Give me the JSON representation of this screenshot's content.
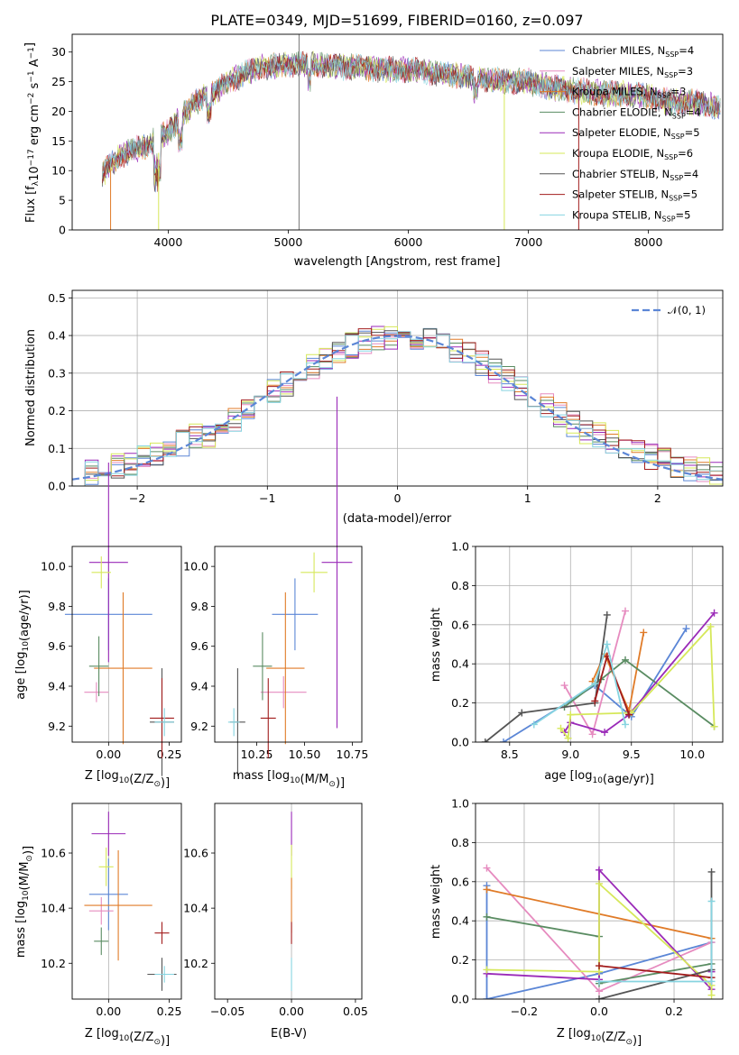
{
  "figure_title": "PLATE=0349, MJD=51699, FIBERID=0160, z=0.097",
  "colors": {
    "chabrier_miles": "#5b86d6",
    "salpeter_miles": "#e68bbf",
    "kroupa_miles": "#e07b28",
    "chabrier_elodie": "#5a8c62",
    "salpeter_elodie": "#9a2ab8",
    "kroupa_elodie": "#d6e85a",
    "chabrier_stelib": "#555555",
    "salpeter_stelib": "#a21d1d",
    "kroupa_stelib": "#86d4e0"
  },
  "chart_data": [
    {
      "type": "line",
      "xlabel": "wavelength [Angstrom, rest frame]",
      "ylabel": "Flux [f",
      "ylabel_sub": "λ",
      "ylabel_mid": "10",
      "ylabel_exp1": "−17",
      "ylabel_tail1": " erg cm",
      "ylabel_exp2": "−2",
      "ylabel_tail2": " s",
      "ylabel_exp3": "−1",
      "ylabel_tail3": " A",
      "ylabel_exp4": "−1",
      "ylabel_end": "]",
      "xlim": [
        3200,
        8620
      ],
      "ylim": [
        0,
        33
      ],
      "xticks": [
        "4000",
        "5000",
        "6000",
        "7000",
        "8000"
      ],
      "yticks": [
        "0",
        "5",
        "10",
        "15",
        "20",
        "25",
        "30"
      ],
      "continuum_x": [
        3450,
        3600,
        3700,
        3800,
        3900,
        4000,
        4100,
        4200,
        4300,
        4400,
        4500,
        4600,
        4700,
        4800,
        4900,
        5000,
        5200,
        5400,
        5600,
        5800,
        6000,
        6200,
        6400,
        6600,
        6800,
        7000,
        7200,
        7400,
        7600,
        7800,
        8000,
        8200,
        8400,
        8600
      ],
      "continuum_y": [
        9.5,
        12.5,
        13.5,
        14,
        15.5,
        16.5,
        19,
        21,
        22.5,
        23.5,
        25,
        26,
        27,
        27.5,
        27.5,
        28,
        28,
        27.5,
        27.5,
        27,
        27,
        26.5,
        26,
        25.5,
        25,
        25,
        24,
        23.5,
        23,
        23,
        22.5,
        21.5,
        21.5,
        20.5
      ],
      "legend_placement": "top-right",
      "legend": [
        {
          "name": "Chabrier MILES, N",
          "sub": "SSP",
          "tail": "=4",
          "color": "#5b86d6"
        },
        {
          "name": "Salpeter MILES, N",
          "sub": "SSP",
          "tail": "=3",
          "color": "#e68bbf"
        },
        {
          "name": "Kroupa MILES, N",
          "sub": "SSP",
          "tail": "=3",
          "color": "#e07b28"
        },
        {
          "name": "Chabrier ELODIE, N",
          "sub": "SSP",
          "tail": "=4",
          "color": "#5a8c62"
        },
        {
          "name": "Salpeter ELODIE, N",
          "sub": "SSP",
          "tail": "=5",
          "color": "#9a2ab8"
        },
        {
          "name": "Kroupa ELODIE, N",
          "sub": "SSP",
          "tail": "=6",
          "color": "#d6e85a"
        },
        {
          "name": "Chabrier STELIB, N",
          "sub": "SSP",
          "tail": "=4",
          "color": "#555555"
        },
        {
          "name": "Salpeter STELIB, N",
          "sub": "SSP",
          "tail": "=5",
          "color": "#a21d1d"
        },
        {
          "name": "Kroupa STELIB, N",
          "sub": "SSP",
          "tail": "=5",
          "color": "#86d4e0"
        }
      ],
      "vertical_spikes_x": [
        5090,
        6800,
        7420,
        3520,
        3920
      ]
    },
    {
      "type": "histogram",
      "xlabel": "(data-model)/error",
      "ylabel": "Normed distribution",
      "xlim": [
        -2.5,
        2.5
      ],
      "ylim": [
        0,
        0.52
      ],
      "xticks": [
        "−2",
        "−1",
        "0",
        "1",
        "2"
      ],
      "yticks": [
        "0.0",
        "0.1",
        "0.2",
        "0.3",
        "0.4",
        "0.5"
      ],
      "grid": true,
      "legend_placement": "top-right",
      "normal_label": "𝒩(0, 1)",
      "normal_color": "#5b86d6",
      "bin_width": 0.1
    },
    {
      "type": "errorbar",
      "xlabel": "Z [log",
      "xlabel_sub": "10",
      "xlabel_tail": "(Z/Z",
      "xlabel_sun": "⊙",
      "xlabel_end": ")]",
      "ylabel": "age  [log",
      "ylabel_sub": "10",
      "ylabel_tail": "(age/yr)]",
      "xlim": [
        -0.15,
        0.3
      ],
      "ylim": [
        9.12,
        10.1
      ],
      "xticks": [
        "0.00",
        "0.25"
      ],
      "yticks": [
        "9.2",
        "9.4",
        "9.6",
        "9.8",
        "10.0"
      ],
      "points": [
        {
          "x": 0.0,
          "y": 9.76,
          "xerr": 0.18,
          "yerr": 0.18,
          "c": "chabrier_miles"
        },
        {
          "x": -0.05,
          "y": 9.37,
          "xerr": 0.05,
          "yerr": 0.05,
          "c": "salpeter_miles"
        },
        {
          "x": 0.06,
          "y": 9.49,
          "xerr": 0.12,
          "yerr": 0.38,
          "c": "kroupa_miles"
        },
        {
          "x": -0.04,
          "y": 9.5,
          "xerr": 0.04,
          "yerr": 0.15,
          "c": "chabrier_elodie"
        },
        {
          "x": 0.0,
          "y": 10.02,
          "xerr": 0.08,
          "yerr": 0.5,
          "c": "salpeter_elodie"
        },
        {
          "x": -0.03,
          "y": 9.97,
          "xerr": 0.04,
          "yerr": 0.08,
          "c": "kroupa_elodie"
        },
        {
          "x": 0.22,
          "y": 9.22,
          "xerr": 0.05,
          "yerr": 0.27,
          "c": "chabrier_stelib"
        },
        {
          "x": 0.22,
          "y": 9.24,
          "xerr": 0.05,
          "yerr": 0.2,
          "c": "salpeter_stelib"
        },
        {
          "x": 0.23,
          "y": 9.22,
          "xerr": 0.04,
          "yerr": 0.07,
          "c": "kroupa_stelib"
        }
      ]
    },
    {
      "type": "errorbar",
      "xlabel": "mass [log",
      "xlabel_sub": "10",
      "xlabel_tail": "(M/M",
      "xlabel_sun": "⊙",
      "xlabel_end": ")]",
      "xlim": [
        10.03,
        10.8
      ],
      "ylim": [
        9.12,
        10.1
      ],
      "xticks": [
        "10.25",
        "10.50",
        "10.75"
      ],
      "yticks": [
        "9.2",
        "9.4",
        "9.6",
        "9.8",
        "10.0"
      ],
      "points": [
        {
          "x": 10.45,
          "y": 9.76,
          "xerr": 0.12,
          "yerr": 0.18,
          "c": "chabrier_miles"
        },
        {
          "x": 10.39,
          "y": 9.37,
          "xerr": 0.12,
          "yerr": 0.08,
          "c": "salpeter_miles"
        },
        {
          "x": 10.4,
          "y": 9.49,
          "xerr": 0.1,
          "yerr": 0.38,
          "c": "kroupa_miles"
        },
        {
          "x": 10.28,
          "y": 9.5,
          "xerr": 0.05,
          "yerr": 0.17,
          "c": "chabrier_elodie"
        },
        {
          "x": 10.67,
          "y": 10.02,
          "xerr": 0.08,
          "yerr": 0.83,
          "c": "salpeter_elodie"
        },
        {
          "x": 10.55,
          "y": 9.97,
          "xerr": 0.07,
          "yerr": 0.1,
          "c": "kroupa_elodie"
        },
        {
          "x": 10.15,
          "y": 9.22,
          "xerr": 0.04,
          "yerr": 0.27,
          "c": "chabrier_stelib"
        },
        {
          "x": 10.31,
          "y": 9.24,
          "xerr": 0.04,
          "yerr": 0.2,
          "c": "salpeter_stelib"
        },
        {
          "x": 10.13,
          "y": 9.22,
          "xerr": 0.03,
          "yerr": 0.07,
          "c": "kroupa_stelib"
        }
      ]
    },
    {
      "type": "line",
      "xlabel": "age  [log",
      "xlabel_sub": "10",
      "xlabel_tail": "(age/yr)]",
      "ylabel": "mass weight",
      "xlim": [
        8.22,
        10.25
      ],
      "ylim": [
        0,
        1
      ],
      "xticks": [
        "8.5",
        "9.0",
        "9.5",
        "10.0"
      ],
      "yticks": [
        "0.0",
        "0.2",
        "0.4",
        "0.6",
        "0.8",
        "1.0"
      ],
      "grid": true,
      "series": [
        {
          "c": "chabrier_miles",
          "x": [
            8.45,
            9.2,
            9.5,
            9.95
          ],
          "y": [
            0.0,
            0.29,
            0.13,
            0.58
          ]
        },
        {
          "c": "salpeter_miles",
          "x": [
            8.95,
            9.18,
            9.45
          ],
          "y": [
            0.29,
            0.04,
            0.67
          ]
        },
        {
          "c": "kroupa_miles",
          "x": [
            9.18,
            9.28,
            9.48,
            9.6
          ],
          "y": [
            0.31,
            0.45,
            0.16,
            0.56
          ]
        },
        {
          "c": "chabrier_elodie",
          "x": [
            8.95,
            9.25,
            9.45,
            10.18
          ],
          "y": [
            0.18,
            0.32,
            0.42,
            0.08
          ]
        },
        {
          "c": "salpeter_elodie",
          "x": [
            8.95,
            9.0,
            9.28,
            9.48,
            10.18
          ],
          "y": [
            0.05,
            0.1,
            0.05,
            0.14,
            0.66
          ]
        },
        {
          "c": "kroupa_elodie",
          "x": [
            8.92,
            8.98,
            9.0,
            9.5,
            10.15,
            10.18
          ],
          "y": [
            0.07,
            0.02,
            0.14,
            0.15,
            0.59,
            0.08
          ]
        },
        {
          "c": "chabrier_stelib",
          "x": [
            8.3,
            8.6,
            9.2,
            9.3
          ],
          "y": [
            0.0,
            0.15,
            0.2,
            0.65
          ]
        },
        {
          "c": "salpeter_stelib",
          "x": [
            9.2,
            9.3,
            9.48
          ],
          "y": [
            0.21,
            0.44,
            0.14
          ]
        },
        {
          "c": "kroupa_stelib",
          "x": [
            8.7,
            9.2,
            9.3,
            9.45
          ],
          "y": [
            0.09,
            0.3,
            0.5,
            0.09
          ]
        }
      ]
    },
    {
      "type": "errorbar",
      "xlabel": "Z [log",
      "xlabel_sub": "10",
      "xlabel_tail": "(Z/Z",
      "xlabel_sun": "⊙",
      "xlabel_end": ")]",
      "ylabel": "mass [log",
      "ylabel_sub": "10",
      "ylabel_tail": "(M/M",
      "ylabel_sun": "⊙",
      "ylabel_end": ")]",
      "xlim": [
        -0.15,
        0.3
      ],
      "ylim": [
        10.07,
        10.78
      ],
      "xticks": [
        "0.00",
        "0.25"
      ],
      "yticks": [
        "10.2",
        "10.4",
        "10.6"
      ],
      "points": [
        {
          "x": 0.0,
          "y": 10.45,
          "xerr": 0.08,
          "yerr": 0.13,
          "c": "chabrier_miles"
        },
        {
          "x": -0.03,
          "y": 10.39,
          "xerr": 0.05,
          "yerr": 0.05,
          "c": "salpeter_miles"
        },
        {
          "x": 0.04,
          "y": 10.41,
          "xerr": 0.14,
          "yerr": 0.2,
          "c": "kroupa_miles"
        },
        {
          "x": -0.03,
          "y": 10.28,
          "xerr": 0.03,
          "yerr": 0.05,
          "c": "chabrier_elodie"
        },
        {
          "x": 0.0,
          "y": 10.67,
          "xerr": 0.07,
          "yerr": 0.08,
          "c": "salpeter_elodie"
        },
        {
          "x": -0.01,
          "y": 10.55,
          "xerr": 0.03,
          "yerr": 0.07,
          "c": "kroupa_elodie"
        },
        {
          "x": 0.22,
          "y": 10.16,
          "xerr": 0.06,
          "yerr": 0.06,
          "c": "chabrier_stelib"
        },
        {
          "x": 0.22,
          "y": 10.31,
          "xerr": 0.03,
          "yerr": 0.04,
          "c": "salpeter_stelib"
        },
        {
          "x": 0.23,
          "y": 10.16,
          "xerr": 0.04,
          "yerr": 0.03,
          "c": "kroupa_stelib"
        }
      ]
    },
    {
      "type": "errorbar",
      "xlabel": "E(B-V)",
      "xlim": [
        -0.06,
        0.055
      ],
      "ylim": [
        10.07,
        10.78
      ],
      "xticks": [
        "−0.05",
        "0.00",
        "0.05"
      ],
      "yticks": [
        "10.2",
        "10.4",
        "10.6"
      ],
      "points": [
        {
          "x": 0.0,
          "y": 10.67,
          "xerr": 0.0,
          "yerr": 0.08,
          "c": "salpeter_elodie"
        },
        {
          "x": 0.0,
          "y": 10.55,
          "xerr": 0.0,
          "yerr": 0.08,
          "c": "kroupa_elodie"
        },
        {
          "x": 0.0,
          "y": 10.41,
          "xerr": 0.0,
          "yerr": 0.1,
          "c": "kroupa_miles"
        },
        {
          "x": 0.0,
          "y": 10.31,
          "xerr": 0.0,
          "yerr": 0.04,
          "c": "salpeter_stelib"
        },
        {
          "x": 0.0,
          "y": 10.16,
          "xerr": 0.0,
          "yerr": 0.06,
          "c": "kroupa_stelib"
        }
      ]
    },
    {
      "type": "line",
      "xlabel": "Z [log",
      "xlabel_sub": "10",
      "xlabel_tail": "(Z/Z",
      "xlabel_sun": "⊙",
      "xlabel_end": ")]",
      "ylabel": "mass weight",
      "xlim": [
        -0.33,
        0.33
      ],
      "ylim": [
        0,
        1
      ],
      "xticks": [
        "−0.2",
        "0.0",
        "0.2"
      ],
      "yticks": [
        "0.0",
        "0.2",
        "0.4",
        "0.6",
        "0.8",
        "1.0"
      ],
      "grid": true,
      "series": [
        {
          "c": "chabrier_miles",
          "x": [
            -0.3,
            -0.3,
            0.0,
            0.3
          ],
          "y": [
            0.58,
            0.0,
            0.13,
            0.29
          ]
        },
        {
          "c": "salpeter_miles",
          "x": [
            -0.3,
            0.0,
            0.3
          ],
          "y": [
            0.67,
            0.04,
            0.29
          ]
        },
        {
          "c": "kroupa_miles",
          "x": [
            -0.3,
            0.3
          ],
          "y": [
            0.56,
            0.31
          ]
        },
        {
          "c": "chabrier_elodie",
          "x": [
            -0.3,
            0.0,
            0.0,
            0.3
          ],
          "y": [
            0.42,
            0.32,
            0.08,
            0.18
          ]
        },
        {
          "c": "salpeter_elodie",
          "x": [
            -0.3,
            0.0,
            0.0,
            0.3,
            0.3
          ],
          "y": [
            0.13,
            0.1,
            0.66,
            0.05,
            0.14
          ]
        },
        {
          "c": "kroupa_elodie",
          "x": [
            -0.3,
            0.0,
            0.0,
            0.3,
            0.3
          ],
          "y": [
            0.15,
            0.14,
            0.59,
            0.07,
            0.02
          ]
        },
        {
          "c": "chabrier_stelib",
          "x": [
            0.0,
            0.3,
            0.3
          ],
          "y": [
            0.0,
            0.15,
            0.65
          ]
        },
        {
          "c": "salpeter_stelib",
          "x": [
            0.0,
            0.3
          ],
          "y": [
            0.17,
            0.11
          ]
        },
        {
          "c": "kroupa_stelib",
          "x": [
            0.0,
            0.3,
            0.3
          ],
          "y": [
            0.09,
            0.09,
            0.5
          ]
        }
      ]
    }
  ]
}
